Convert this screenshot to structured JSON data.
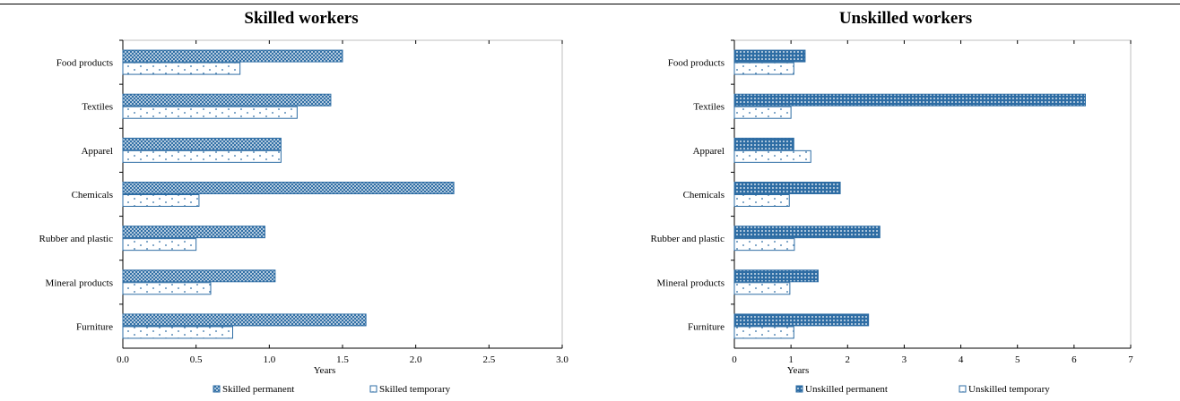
{
  "colors": {
    "bar": "#2e6da4",
    "axis": "#000000",
    "frame": "#bfbfbf"
  },
  "chart_data": [
    {
      "type": "bar",
      "orientation": "horizontal",
      "title": "Skilled workers",
      "xlabel": "Years",
      "categories": [
        "Food products",
        "Textiles",
        "Apparel",
        "Chemicals",
        "Rubber and plastic",
        "Mineral products",
        "Furniture"
      ],
      "xlim": [
        0,
        3.0
      ],
      "xticks": [
        "0.0",
        "0.5",
        "1.0",
        "1.5",
        "2.0",
        "2.5",
        "3.0"
      ],
      "series": [
        {
          "name": "Skilled permanent",
          "pattern": "crosshatch",
          "values": [
            1.5,
            1.42,
            1.08,
            2.26,
            0.97,
            1.04,
            1.66
          ]
        },
        {
          "name": "Skilled temporary",
          "pattern": "dots",
          "values": [
            0.8,
            1.19,
            1.08,
            0.52,
            0.5,
            0.6,
            0.75
          ]
        }
      ],
      "legend_position": "bottom"
    },
    {
      "type": "bar",
      "orientation": "horizontal",
      "title": "Unskilled workers",
      "xlabel": "Years",
      "categories": [
        "Food products",
        "Textiles",
        "Apparel",
        "Chemicals",
        "Rubber and plastic",
        "Mineral products",
        "Furniture"
      ],
      "xlim": [
        0,
        7
      ],
      "xticks": [
        "0",
        "1",
        "2",
        "3",
        "4",
        "5",
        "6",
        "7"
      ],
      "series": [
        {
          "name": "Unskilled permanent",
          "pattern": "dense",
          "values": [
            1.25,
            6.2,
            1.05,
            1.87,
            2.57,
            1.48,
            2.37
          ]
        },
        {
          "name": "Unskilled temporary",
          "pattern": "dots",
          "values": [
            1.05,
            1.0,
            1.35,
            0.97,
            1.06,
            0.98,
            1.05
          ]
        }
      ],
      "legend_position": "bottom"
    }
  ]
}
